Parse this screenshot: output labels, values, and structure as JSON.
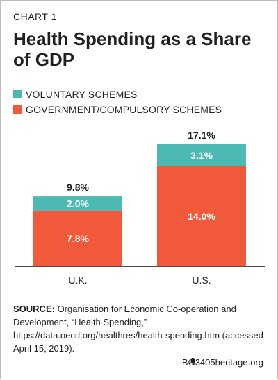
{
  "header": {
    "chart_number": "CHART 1",
    "title": "Health Spending as a Share of GDP"
  },
  "colors": {
    "voluntary": "#4cbab2",
    "government": "#f05a3a",
    "text": "#231f20",
    "axis": "#4d4d4d"
  },
  "chart_data": {
    "type": "bar",
    "stacked": true,
    "title": "Health Spending as a Share of GDP",
    "categories": [
      "U.K.",
      "U.S."
    ],
    "series": [
      {
        "name": "GOVERNMENT/COMPULSORY SCHEMES",
        "values": [
          7.8,
          14.0
        ],
        "labels": [
          "7.8%",
          "14.0%"
        ],
        "color": "#f05a3a"
      },
      {
        "name": "VOLUNTARY SCHEMES",
        "values": [
          2.0,
          3.1
        ],
        "labels": [
          "2.0%",
          "3.1%"
        ],
        "color": "#4cbab2"
      }
    ],
    "totals": [
      9.8,
      17.1
    ],
    "total_labels": [
      "9.8%",
      "17.1%"
    ],
    "ylim": [
      0,
      20.2
    ],
    "xlabel": "",
    "ylabel": "",
    "grid": false,
    "legend_position": "top-left"
  },
  "legend": [
    {
      "label": "VOLUNTARY SCHEMES",
      "color": "#4cbab2"
    },
    {
      "label": "GOVERNMENT/COMPULSORY SCHEMES",
      "color": "#f05a3a"
    }
  ],
  "source": {
    "label": "SOURCE:",
    "text": " Organisation for Economic Co-operation and Development, “Health Spending,” https://data.oecd.org/healthres/health-spending.htm (accessed April 15, 2019)."
  },
  "footer": {
    "code": "BG3405",
    "site": "heritage.org",
    "logo_icon": "liberty-bell-icon"
  }
}
